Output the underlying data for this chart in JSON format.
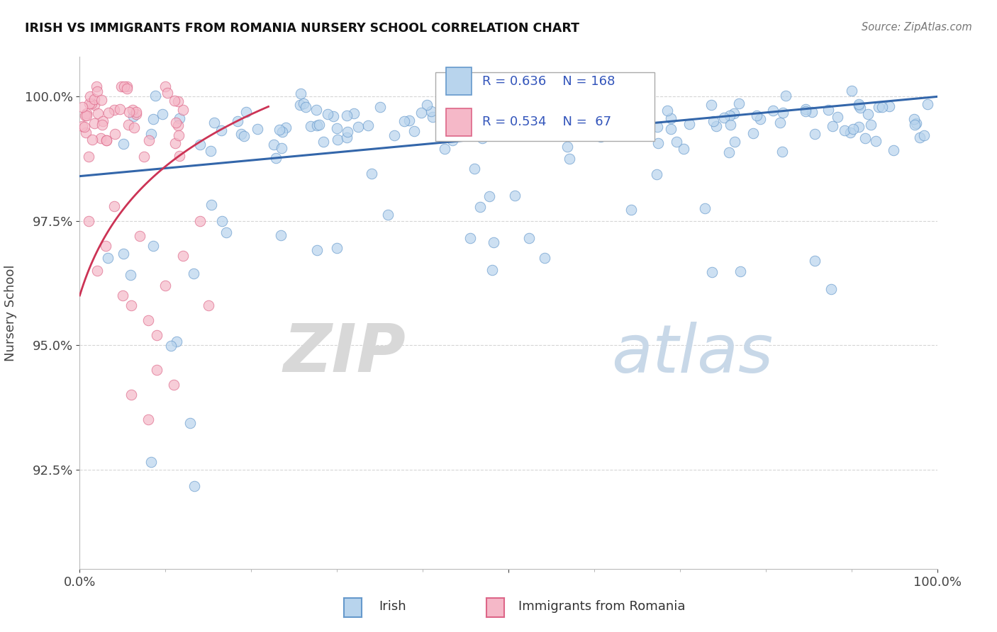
{
  "title": "IRISH VS IMMIGRANTS FROM ROMANIA NURSERY SCHOOL CORRELATION CHART",
  "source": "Source: ZipAtlas.com",
  "ylabel": "Nursery School",
  "irish_R": 0.636,
  "irish_N": 168,
  "romania_R": 0.534,
  "romania_N": 67,
  "irish_color": "#b8d4ed",
  "irish_edge_color": "#6699cc",
  "romania_color": "#f5b8c8",
  "romania_edge_color": "#dd6688",
  "irish_line_color": "#3366aa",
  "romania_line_color": "#cc3355",
  "background_color": "#ffffff",
  "grid_color": "#bbbbbb",
  "title_color": "#111111",
  "legend_text_color": "#3355bb",
  "watermark_color": "#d0dff0",
  "xlim": [
    0.0,
    1.0
  ],
  "ylim": [
    0.905,
    1.008
  ],
  "yticks": [
    0.925,
    0.95,
    0.975,
    1.0
  ],
  "ytick_labels": [
    "92.5%",
    "95.0%",
    "97.5%",
    "100.0%"
  ]
}
